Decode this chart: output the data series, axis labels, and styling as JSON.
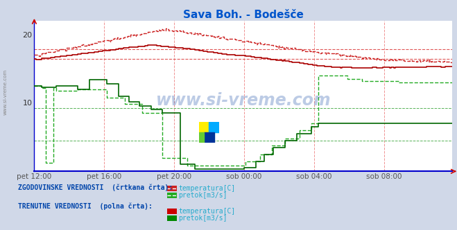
{
  "title": "Sava Boh. - Bodešče",
  "title_color": "#0055cc",
  "fig_bg_color": "#d0d8e8",
  "plot_bg_color": "#ffffff",
  "border_color": "#0000cc",
  "xlim": [
    0,
    287
  ],
  "ylim": [
    0,
    22
  ],
  "xtick_labels": [
    "pet 12:00",
    "pet 16:00",
    "pet 20:00",
    "sob 00:00",
    "sob 04:00",
    "sob 08:00"
  ],
  "xtick_positions": [
    0,
    48,
    96,
    144,
    192,
    240
  ],
  "red_hgrid": [
    17.8,
    16.4
  ],
  "green_hgrid": [
    9.2,
    4.5
  ],
  "temp_solid_color": "#aa0000",
  "temp_dash_color": "#cc2222",
  "flow_solid_color": "#006600",
  "flow_dash_color": "#22aa22",
  "watermark": "www.si-vreme.com",
  "legend_text1": "ZGODOVINSKE VREDNOSTI  (črtkana črta):",
  "legend_text2": "TRENUTNE VREDNOSTI  (polna črta):",
  "legend_temp": "temperatura[C]",
  "legend_flow": "pretok[m3/s]",
  "sidebar_text": "www.si-vreme.com"
}
